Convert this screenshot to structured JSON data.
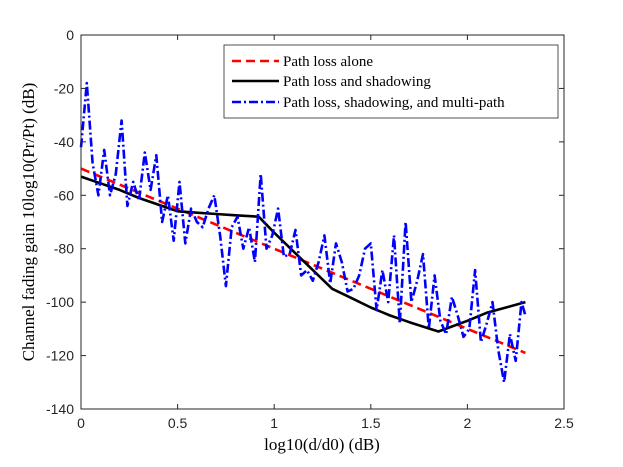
{
  "chart_data": {
    "type": "line",
    "title": "",
    "xlabel": "log10(d/d0) (dB)",
    "ylabel": "Channel fading gain 10log10(Pr/Pt) (dB)",
    "xlim": [
      0,
      2.5
    ],
    "ylim": [
      -140,
      0
    ],
    "xticks": [
      0,
      0.5,
      1,
      1.5,
      2,
      2.5
    ],
    "xtick_labels": [
      "0",
      "0.5",
      "1",
      "1.5",
      "2",
      "2.5"
    ],
    "yticks": [
      0,
      -20,
      -40,
      -60,
      -80,
      -100,
      -120,
      -140
    ],
    "ytick_labels": [
      "0",
      "-20",
      "-40",
      "-60",
      "-80",
      "-100",
      "-120",
      "-140"
    ],
    "legend_position": "top-right",
    "series": [
      {
        "name": "Path loss alone",
        "color": "#ff0000",
        "style": "dashed",
        "x": [
          0,
          2.3
        ],
        "y": [
          -50,
          -119
        ]
      },
      {
        "name": "Path loss and shadowing",
        "color": "#000000",
        "style": "solid",
        "x": [
          0,
          0.1,
          0.2,
          0.3,
          0.4,
          0.5,
          0.6,
          0.7,
          0.8,
          0.92,
          1.0,
          1.1,
          1.2,
          1.3,
          1.4,
          1.5,
          1.6,
          1.7,
          1.85,
          2.0,
          2.1,
          2.2,
          2.3
        ],
        "y": [
          -53,
          -55.5,
          -58,
          -61,
          -63.5,
          -66,
          -66.5,
          -67,
          -67.5,
          -68,
          -74,
          -81,
          -88,
          -95,
          -98.5,
          -102,
          -105,
          -107.5,
          -111,
          -107,
          -104,
          -102,
          -100
        ]
      },
      {
        "name": "Path loss, shadowing, and multi-path",
        "color": "#0000ff",
        "style": "dashdot",
        "x": [
          0,
          0.03,
          0.06,
          0.09,
          0.12,
          0.15,
          0.18,
          0.21,
          0.24,
          0.27,
          0.3,
          0.33,
          0.36,
          0.39,
          0.42,
          0.45,
          0.48,
          0.51,
          0.54,
          0.57,
          0.6,
          0.63,
          0.66,
          0.69,
          0.72,
          0.75,
          0.78,
          0.81,
          0.84,
          0.87,
          0.9,
          0.93,
          0.96,
          0.99,
          1.02,
          1.05,
          1.08,
          1.11,
          1.14,
          1.17,
          1.2,
          1.23,
          1.26,
          1.29,
          1.32,
          1.35,
          1.38,
          1.41,
          1.44,
          1.47,
          1.5,
          1.53,
          1.56,
          1.59,
          1.62,
          1.65,
          1.68,
          1.71,
          1.74,
          1.77,
          1.8,
          1.83,
          1.86,
          1.89,
          1.92,
          1.95,
          1.98,
          2.01,
          2.04,
          2.07,
          2.1,
          2.13,
          2.16,
          2.19,
          2.22,
          2.25,
          2.28,
          2.3
        ],
        "y": [
          -42,
          -18,
          -48,
          -60,
          -43,
          -60,
          -52,
          -32,
          -64,
          -55,
          -62,
          -44,
          -58,
          -45,
          -70,
          -60,
          -77,
          -55,
          -78,
          -65,
          -70,
          -72,
          -65,
          -60,
          -75,
          -94,
          -72,
          -68,
          -80,
          -72,
          -85,
          -52,
          -80,
          -75,
          -65,
          -83,
          -82,
          -73,
          -90,
          -88,
          -92,
          -85,
          -75,
          -93,
          -78,
          -85,
          -96,
          -95,
          -90,
          -80,
          -78,
          -103,
          -88,
          -100,
          -75,
          -108,
          -70,
          -100,
          -92,
          -82,
          -110,
          -90,
          -107,
          -112,
          -98,
          -105,
          -113,
          -110,
          -88,
          -115,
          -108,
          -100,
          -118,
          -130,
          -112,
          -122,
          -100,
          -105
        ]
      }
    ]
  }
}
